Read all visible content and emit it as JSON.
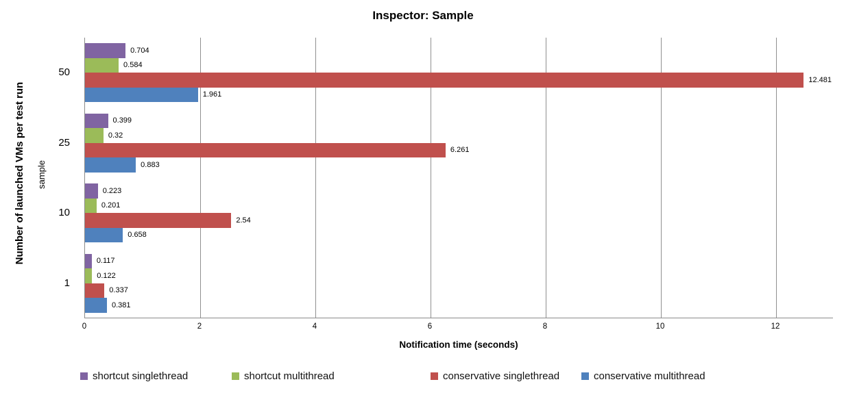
{
  "chart_data": {
    "type": "bar",
    "orientation": "horizontal",
    "title": "Inspector: Sample",
    "xlabel": "Notification time (seconds)",
    "ylabel": "Number of launched VMs per test run",
    "ylabel_secondary": "sample",
    "categories": [
      "50",
      "25",
      "10",
      "1"
    ],
    "series": [
      {
        "name": "shortcut singlethread",
        "color": "#8064A2",
        "values": [
          0.704,
          0.399,
          0.223,
          0.117
        ]
      },
      {
        "name": "shortcut multithread",
        "color": "#9BBB59",
        "values": [
          0.584,
          0.32,
          0.201,
          0.122
        ]
      },
      {
        "name": "conservative singlethread",
        "color": "#C0504D",
        "values": [
          12.481,
          6.261,
          2.54,
          0.337
        ]
      },
      {
        "name": "conservative multithread",
        "color": "#4F81BD",
        "values": [
          1.961,
          0.883,
          0.658,
          0.381
        ]
      }
    ],
    "xlim": [
      0,
      13
    ],
    "x_ticks": [
      0,
      2,
      4,
      6,
      8,
      10,
      12
    ],
    "gridlines": true,
    "legend_position": "bottom",
    "value_labels_shown": true,
    "colors": {
      "gridline": "#8f8f8f",
      "axis": "#8a8a8a",
      "text": "#000000"
    }
  }
}
